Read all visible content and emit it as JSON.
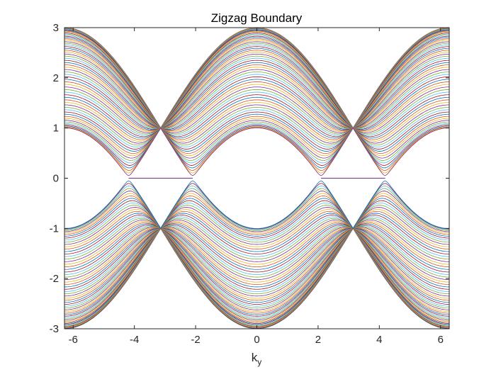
{
  "chart_data": {
    "type": "line",
    "title": "Zigzag Boundary",
    "xlabel": "k",
    "xlabel_subscript": "y",
    "ylabel": "",
    "xlim": [
      -6.2832,
      6.2832
    ],
    "ylim": [
      -3,
      3
    ],
    "xticks": [
      -6,
      -4,
      -2,
      0,
      2,
      4,
      6
    ],
    "yticks": [
      -3,
      -2,
      -1,
      0,
      1,
      2,
      3
    ],
    "grid": false,
    "legend": "none",
    "band_count_per_sign": 60,
    "band_formula": "E = ±sqrt(1 + 4cos²(k_y/2) + 4|cos(k_y/2)|·cos(q))",
    "edge_state": {
      "energy": 0,
      "k_ranges": [
        [
          -4.1888,
          -2.0944
        ],
        [
          2.0944,
          4.1888
        ]
      ],
      "color": "#7e2f8e"
    },
    "series_colors": [
      "#0072bd",
      "#d95319",
      "#edb120",
      "#7e2f8e",
      "#77ac30",
      "#4dbeee",
      "#a2142f"
    ]
  }
}
